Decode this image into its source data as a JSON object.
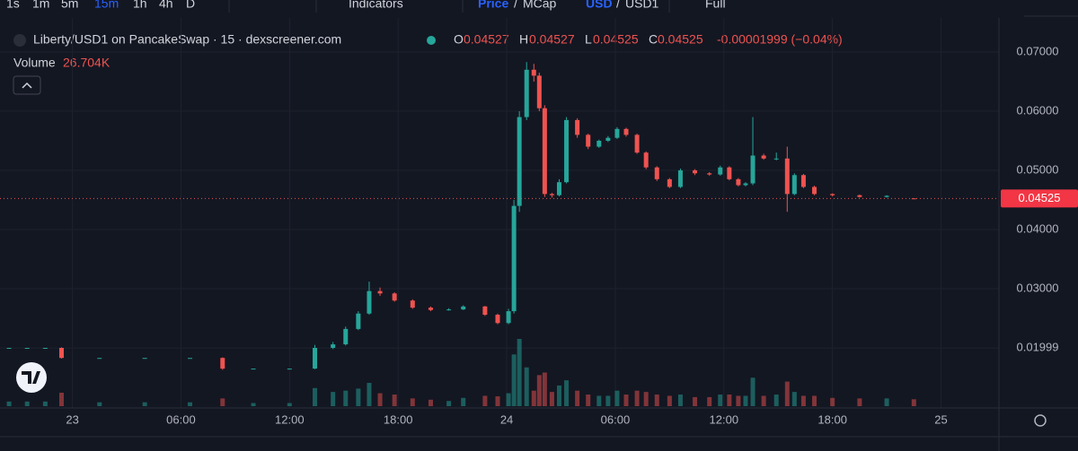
{
  "toolbar": {
    "intervals": [
      "1s",
      "1m",
      "5m",
      "15m",
      "1h",
      "4h",
      "D"
    ],
    "active_interval": "15m",
    "indicators": "Indicators",
    "price": "Price",
    "price_sep": "/",
    "mcap": "MCap",
    "usd": "USD",
    "usd_sep": "/",
    "usd1": "USD1",
    "full": "Full"
  },
  "legend": {
    "title": "Liberty/USD1 on PancakeSwap · 15 · dexscreener.com",
    "o": "O",
    "open": 0.04527,
    "h": "H",
    "high": 0.04527,
    "l": "L",
    "low": 0.04525,
    "c": "C",
    "close": 0.04525,
    "change": "-0.00001999 (−0.04%)",
    "volume": "Volume",
    "volume_value": "26.704K"
  },
  "chart_data": {
    "type": "candlestick",
    "up_color": "#26a69a",
    "down_color": "#ef5350",
    "grid": true,
    "x": [
      -3.5,
      -2.5,
      -1.5,
      -0.6,
      1.5,
      4,
      6.5,
      8.3,
      10,
      12,
      13.4,
      14.4,
      15.1,
      15.8,
      16.4,
      17.0,
      17.8,
      18.8,
      19.8,
      20.8,
      21.6,
      22.8,
      23.5,
      24.1,
      24.4,
      24.7,
      25.1,
      25.5,
      25.8,
      26.1,
      26.5,
      26.9,
      27.3,
      27.9,
      28.5,
      29.1,
      29.6,
      30.1,
      30.6,
      31.2,
      31.7,
      32.3,
      33.0,
      33.6,
      34.4,
      35.2,
      35.8,
      36.3,
      36.8,
      37.2,
      37.6,
      38.2,
      38.9,
      39.5,
      39.9,
      40.4,
      41.0,
      42.0,
      43.5,
      45.0,
      46.5
    ],
    "open": [
      0.02,
      0.02,
      0.02,
      0.02,
      0.0183,
      0.0183,
      0.0183,
      0.0183,
      0.0165,
      0.0165,
      0.0165,
      0.02,
      0.0206,
      0.0232,
      0.0258,
      0.0296,
      0.0292,
      0.028,
      0.0268,
      0.0264,
      0.0265,
      0.027,
      0.0256,
      0.0242,
      0.0262,
      0.044,
      0.059,
      0.067,
      0.066,
      0.0605,
      0.046,
      0.0458,
      0.048,
      0.0585,
      0.056,
      0.054,
      0.055,
      0.0555,
      0.057,
      0.056,
      0.053,
      0.0505,
      0.0485,
      0.0472,
      0.05,
      0.0495,
      0.0493,
      0.0505,
      0.0485,
      0.0475,
      0.0478,
      0.0525,
      0.052,
      0.052,
      0.046,
      0.0492,
      0.0472,
      0.046,
      0.0458,
      0.0455,
      0.04527
    ],
    "high": [
      0.02,
      0.02,
      0.02,
      0.0201,
      0.0183,
      0.0183,
      0.0183,
      0.0184,
      0.0165,
      0.0165,
      0.0205,
      0.021,
      0.0236,
      0.0262,
      0.0312,
      0.0302,
      0.0294,
      0.0282,
      0.027,
      0.0267,
      0.0272,
      0.0271,
      0.0258,
      0.0266,
      0.045,
      0.06,
      0.0683,
      0.068,
      0.0665,
      0.061,
      0.0462,
      0.0485,
      0.059,
      0.0588,
      0.0562,
      0.0552,
      0.0558,
      0.0573,
      0.0572,
      0.0562,
      0.0532,
      0.0507,
      0.0487,
      0.0503,
      0.0502,
      0.0497,
      0.0508,
      0.0507,
      0.0487,
      0.048,
      0.059,
      0.0528,
      0.053,
      0.054,
      0.0495,
      0.0494,
      0.0474,
      0.0461,
      0.0459,
      0.0458,
      0.04527
    ],
    "low": [
      0.02,
      0.02,
      0.02,
      0.0182,
      0.0183,
      0.0183,
      0.0183,
      0.0163,
      0.0165,
      0.0165,
      0.0164,
      0.0198,
      0.0204,
      0.023,
      0.0256,
      0.0288,
      0.0278,
      0.0266,
      0.0262,
      0.0263,
      0.0264,
      0.0254,
      0.024,
      0.024,
      0.0258,
      0.043,
      0.0585,
      0.065,
      0.06,
      0.0455,
      0.0454,
      0.0456,
      0.0478,
      0.0555,
      0.0536,
      0.0538,
      0.0548,
      0.0553,
      0.0557,
      0.0528,
      0.0502,
      0.0482,
      0.047,
      0.047,
      0.0492,
      0.0491,
      0.0491,
      0.0483,
      0.0473,
      0.0473,
      0.0475,
      0.0518,
      0.0517,
      0.043,
      0.0458,
      0.047,
      0.0458,
      0.0456,
      0.0454,
      0.0454,
      0.04525
    ],
    "close": [
      0.02,
      0.02,
      0.02,
      0.0183,
      0.0183,
      0.0183,
      0.0183,
      0.0165,
      0.0165,
      0.0165,
      0.02,
      0.0206,
      0.0232,
      0.0258,
      0.0296,
      0.0292,
      0.028,
      0.0268,
      0.0264,
      0.0265,
      0.027,
      0.0256,
      0.0242,
      0.0262,
      0.044,
      0.059,
      0.067,
      0.066,
      0.0605,
      0.046,
      0.0458,
      0.048,
      0.0585,
      0.056,
      0.054,
      0.055,
      0.0555,
      0.057,
      0.056,
      0.053,
      0.0505,
      0.0485,
      0.0472,
      0.05,
      0.0495,
      0.0493,
      0.0505,
      0.0485,
      0.0475,
      0.0478,
      0.0525,
      0.052,
      0.052,
      0.046,
      0.0492,
      0.0472,
      0.046,
      0.0458,
      0.0455,
      0.0457,
      0.04525
    ],
    "volume": [
      18000,
      18000,
      18000,
      52000,
      15000,
      15000,
      15000,
      30000,
      12000,
      12000,
      70000,
      55000,
      60000,
      68000,
      90000,
      50000,
      45000,
      30000,
      25000,
      20000,
      32000,
      40000,
      38000,
      50000,
      200000,
      260000,
      150000,
      60000,
      120000,
      130000,
      55000,
      80000,
      100000,
      60000,
      45000,
      40000,
      40000,
      60000,
      45000,
      60000,
      55000,
      45000,
      40000,
      45000,
      35000,
      35000,
      45000,
      45000,
      40000,
      40000,
      110000,
      40000,
      45000,
      95000,
      55000,
      40000,
      40000,
      32000,
      30000,
      30000,
      26704
    ],
    "xlim": [
      -4,
      51.2
    ],
    "xticks": [
      {
        "value": 0,
        "label": "23"
      },
      {
        "value": 6,
        "label": "06:00"
      },
      {
        "value": 12,
        "label": "12:00"
      },
      {
        "value": 18,
        "label": "18:00"
      },
      {
        "value": 24,
        "label": "24"
      },
      {
        "value": 30,
        "label": "06:00"
      },
      {
        "value": 36,
        "label": "12:00"
      },
      {
        "value": 42,
        "label": "18:00"
      },
      {
        "value": 48,
        "label": "25"
      }
    ],
    "ylim": [
      0.00985,
      0.07424
    ],
    "yticks": [
      0.01999,
      {
        "value": 0.03,
        "label": "0.03000"
      },
      {
        "value": 0.04,
        "label": "0.04000"
      },
      {
        "value": 0.05,
        "label": "0.05000"
      },
      {
        "value": 0.06,
        "label": "0.06000"
      },
      {
        "value": 0.07,
        "label": "0.07000"
      }
    ],
    "last_price": 0.04525
  }
}
